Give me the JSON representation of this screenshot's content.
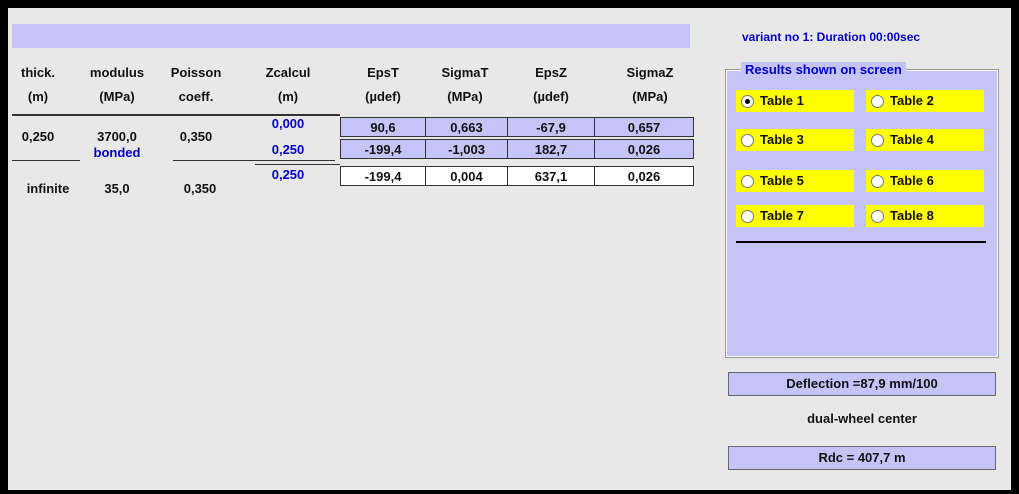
{
  "header": {
    "variant": "variant no 1:  Duration 00:00sec"
  },
  "columns": [
    {
      "line1": "thick.",
      "line2": "(m)"
    },
    {
      "line1": "modulus",
      "line2": "(MPa)"
    },
    {
      "line1": "Poisson",
      "line2": "coeff."
    },
    {
      "line1": "Zcalcul",
      "line2": "(m)"
    },
    {
      "line1": "EpsT",
      "line2": "(µdef)"
    },
    {
      "line1": "SigmaT",
      "line2": "(MPa)"
    },
    {
      "line1": "EpsZ",
      "line2": "(µdef)"
    },
    {
      "line1": "SigmaZ",
      "line2": "(MPa)"
    }
  ],
  "layers": [
    {
      "thick": "0,250",
      "modulus": "3700,0",
      "poisson": "0,350"
    },
    {
      "thick": "infinite",
      "modulus": "35,0",
      "poisson": "0,350"
    }
  ],
  "interface": "bonded",
  "results": [
    {
      "z": "0,000",
      "values": [
        "90,6",
        "0,663",
        "-67,9",
        "0,657"
      ]
    },
    {
      "z": "0,250",
      "values": [
        "-199,4",
        "-1,003",
        "182,7",
        "0,026"
      ]
    },
    {
      "z": "0,250",
      "values": [
        "-199,4",
        "0,004",
        "637,1",
        "0,026"
      ]
    }
  ],
  "panel": {
    "title": "Results shown on screen",
    "options": [
      "Table 1",
      "Table 2",
      "Table 3",
      "Table 4",
      "Table 5",
      "Table 6",
      "Table 7",
      "Table 8"
    ],
    "selected": 0
  },
  "deflection": "Deflection =87,9 mm/100",
  "position": "dual-wheel center",
  "rdc": "Rdc = 407,7 m"
}
